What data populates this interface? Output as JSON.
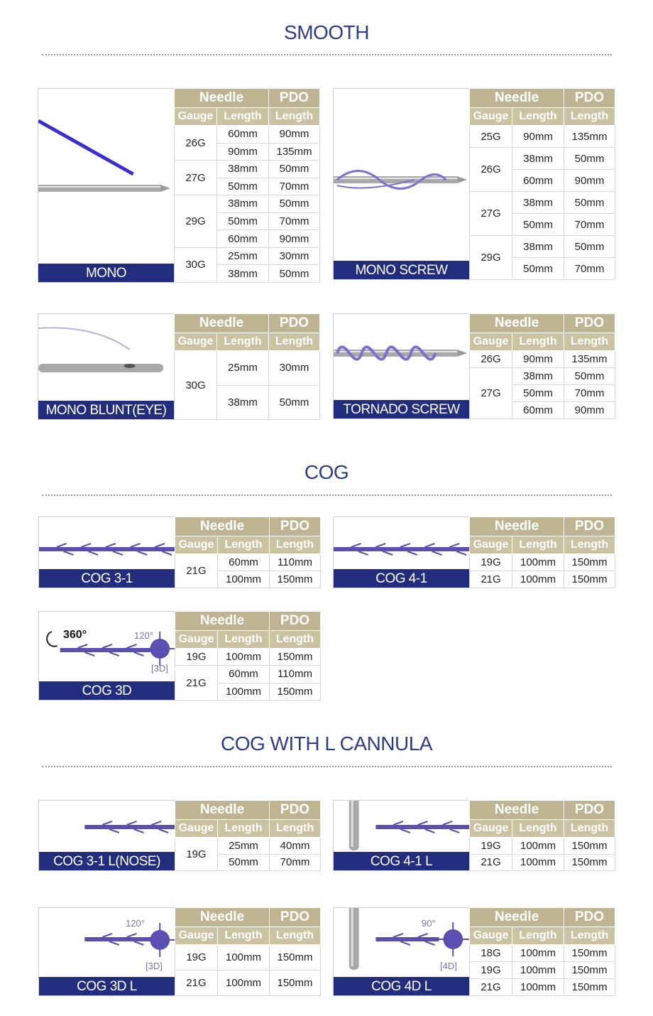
{
  "headers": {
    "needle": "Needle",
    "pdo": "PDO",
    "gauge": "Gauge",
    "needle_length": "Length",
    "pdo_length": "Length"
  },
  "colors": {
    "title": "#2e3a8c",
    "label_bar": "#232d7e",
    "header": "#bfb491",
    "subheader": "#cbc2a2",
    "thread": "#5b4fb0"
  },
  "sections": [
    {
      "title": "SMOOTH",
      "cards": [
        {
          "name": "MONO",
          "illustration": "mono-needle",
          "groups": [
            {
              "gauge": "26G",
              "rows": [
                [
                  "60mm",
                  "90mm"
                ],
                [
                  "90mm",
                  "135mm"
                ]
              ]
            },
            {
              "gauge": "27G",
              "rows": [
                [
                  "38mm",
                  "50mm"
                ],
                [
                  "50mm",
                  "70mm"
                ]
              ]
            },
            {
              "gauge": "29G",
              "rows": [
                [
                  "38mm",
                  "50mm"
                ],
                [
                  "50mm",
                  "70mm"
                ],
                [
                  "60mm",
                  "90mm"
                ]
              ]
            },
            {
              "gauge": "30G",
              "rows": [
                [
                  "25mm",
                  "30mm"
                ],
                [
                  "38mm",
                  "50mm"
                ]
              ]
            }
          ]
        },
        {
          "name": "MONO SCREW",
          "illustration": "screw-needle",
          "groups": [
            {
              "gauge": "25G",
              "rows": [
                [
                  "90mm",
                  "135mm"
                ]
              ]
            },
            {
              "gauge": "26G",
              "rows": [
                [
                  "38mm",
                  "50mm"
                ],
                [
                  "60mm",
                  "90mm"
                ]
              ]
            },
            {
              "gauge": "27G",
              "rows": [
                [
                  "38mm",
                  "50mm"
                ],
                [
                  "50mm",
                  "70mm"
                ]
              ]
            },
            {
              "gauge": "29G",
              "rows": [
                [
                  "38mm",
                  "50mm"
                ],
                [
                  "50mm",
                  "70mm"
                ]
              ]
            }
          ]
        },
        {
          "name": "MONO BLUNT(EYE)",
          "illustration": "blunt-needle",
          "groups": [
            {
              "gauge": "30G",
              "rows": [
                [
                  "25mm",
                  "30mm"
                ],
                [
                  "38mm",
                  "50mm"
                ]
              ]
            }
          ]
        },
        {
          "name": "TORNADO SCREW",
          "illustration": "tornado-needle",
          "groups": [
            {
              "gauge": "26G",
              "rows": [
                [
                  "90mm",
                  "135mm"
                ]
              ]
            },
            {
              "gauge": "27G",
              "rows": [
                [
                  "38mm",
                  "50mm"
                ],
                [
                  "50mm",
                  "70mm"
                ],
                [
                  "60mm",
                  "90mm"
                ]
              ]
            }
          ]
        }
      ]
    },
    {
      "title": "COG",
      "cards": [
        {
          "name": "COG 3-1",
          "illustration": "cog-thread",
          "groups": [
            {
              "gauge": "21G",
              "rows": [
                [
                  "60mm",
                  "110mm"
                ],
                [
                  "100mm",
                  "150mm"
                ]
              ]
            }
          ]
        },
        {
          "name": "COG 4-1",
          "illustration": "cog-thread",
          "groups": [
            {
              "gauge": "19G",
              "rows": [
                [
                  "100mm",
                  "150mm"
                ]
              ]
            },
            {
              "gauge": "21G",
              "rows": [
                [
                  "100mm",
                  "150mm"
                ]
              ]
            }
          ]
        },
        {
          "name": "COG 3D",
          "illustration": "cog-3d",
          "annotations": [
            "360°",
            "120°",
            "[3D]"
          ],
          "groups": [
            {
              "gauge": "19G",
              "rows": [
                [
                  "100mm",
                  "150mm"
                ]
              ]
            },
            {
              "gauge": "21G",
              "rows": [
                [
                  "60mm",
                  "110mm"
                ],
                [
                  "100mm",
                  "150mm"
                ]
              ]
            }
          ]
        }
      ]
    },
    {
      "title": "COG WITH L CANNULA",
      "cards": [
        {
          "name": "COG 3-1 L(NOSE)",
          "illustration": "cog-thread-short",
          "groups": [
            {
              "gauge": "19G",
              "rows": [
                [
                  "25mm",
                  "40mm"
                ],
                [
                  "50mm",
                  "70mm"
                ]
              ]
            }
          ]
        },
        {
          "name": "COG 4-1 L",
          "illustration": "cog-cannula",
          "groups": [
            {
              "gauge": "19G",
              "rows": [
                [
                  "100mm",
                  "150mm"
                ]
              ]
            },
            {
              "gauge": "21G",
              "rows": [
                [
                  "100mm",
                  "150mm"
                ]
              ]
            }
          ]
        },
        {
          "name": "COG 3D L",
          "illustration": "cog-3d-short",
          "annotations": [
            "120°",
            "[3D]"
          ],
          "groups": [
            {
              "gauge": "19G",
              "rows": [
                [
                  "100mm",
                  "150mm"
                ]
              ]
            },
            {
              "gauge": "21G",
              "rows": [
                [
                  "100mm",
                  "150mm"
                ]
              ]
            }
          ]
        },
        {
          "name": "COG 4D L",
          "illustration": "cog-4d-cannula",
          "annotations": [
            "90°",
            "[4D]"
          ],
          "groups": [
            {
              "gauge": "18G",
              "rows": [
                [
                  "100mm",
                  "150mm"
                ]
              ]
            },
            {
              "gauge": "19G",
              "rows": [
                [
                  "100mm",
                  "150mm"
                ]
              ]
            },
            {
              "gauge": "21G",
              "rows": [
                [
                  "100mm",
                  "150mm"
                ]
              ]
            }
          ]
        }
      ]
    }
  ]
}
